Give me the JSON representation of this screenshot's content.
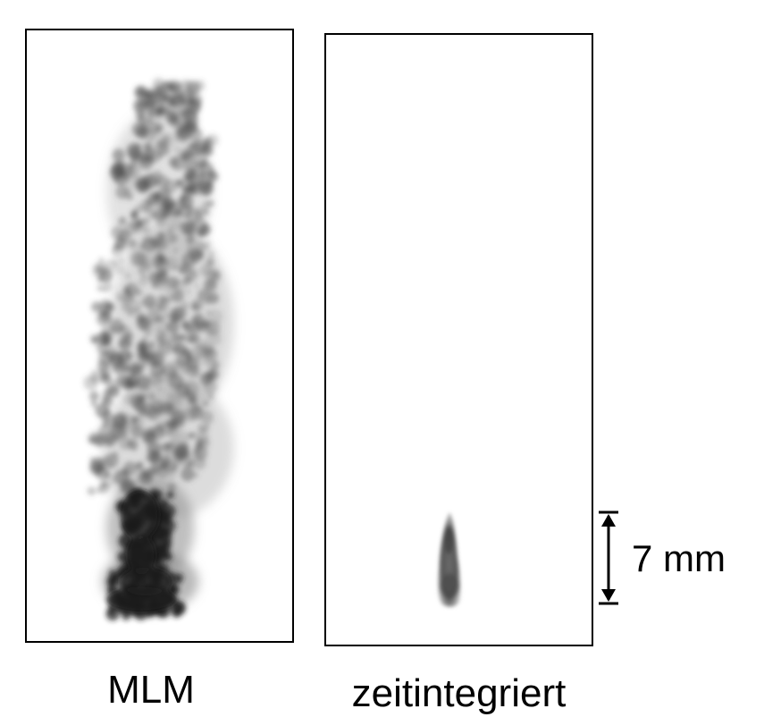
{
  "panels": {
    "left": {
      "caption": "MLM",
      "content": "flame-image"
    },
    "right": {
      "caption": "zeitintegriert",
      "content": "flame-image"
    }
  },
  "scale_bar": {
    "label": "7 mm"
  },
  "colors": {
    "frame": "#000000",
    "background": "#ffffff",
    "flame_dark": "#1f1f1f",
    "flame_mid": "#5a5a5a",
    "flame_light": "#8c8c8c"
  }
}
